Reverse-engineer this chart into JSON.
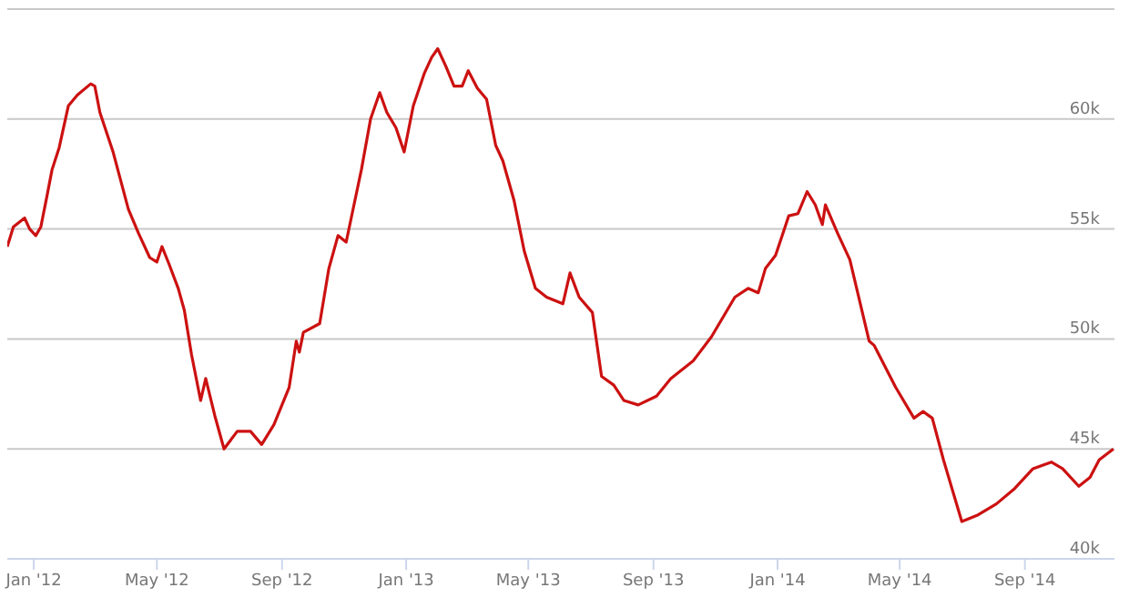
{
  "chart_data": {
    "type": "line",
    "x": [
      "2011-12-06",
      "2011-12-12",
      "2011-12-23",
      "2011-12-28",
      "2012-01-03",
      "2012-01-08",
      "2012-01-14",
      "2012-01-19",
      "2012-01-26",
      "2012-02-04",
      "2012-02-13",
      "2012-02-26",
      "2012-03-01",
      "2012-03-06",
      "2012-03-19",
      "2012-04-03",
      "2012-04-13",
      "2012-04-24",
      "2012-05-01",
      "2012-05-06",
      "2012-05-13",
      "2012-05-22",
      "2012-05-28",
      "2012-06-04",
      "2012-06-13",
      "2012-06-18",
      "2012-06-27",
      "2012-07-06",
      "2012-07-19",
      "2012-08-01",
      "2012-08-12",
      "2012-08-24",
      "2012-09-08",
      "2012-09-15",
      "2012-09-18",
      "2012-09-22",
      "2012-10-08",
      "2012-10-17",
      "2012-10-26",
      "2012-11-03",
      "2012-11-08",
      "2012-11-18",
      "2012-11-27",
      "2012-12-06",
      "2012-12-13",
      "2012-12-22",
      "2012-12-30",
      "2013-01-08",
      "2013-01-19",
      "2013-01-26",
      "2013-02-01",
      "2013-02-09",
      "2013-02-17",
      "2013-02-25",
      "2013-03-03",
      "2013-03-12",
      "2013-03-21",
      "2013-03-30",
      "2013-04-06",
      "2013-04-17",
      "2013-04-27",
      "2013-05-08",
      "2013-05-19",
      "2013-06-04",
      "2013-06-11",
      "2013-06-20",
      "2013-07-03",
      "2013-07-12",
      "2013-07-24",
      "2013-08-03",
      "2013-08-17",
      "2013-09-04",
      "2013-09-18",
      "2013-10-10",
      "2013-10-28",
      "2013-11-20",
      "2013-12-03",
      "2013-12-13",
      "2013-12-20",
      "2013-12-30",
      "2014-01-12",
      "2014-01-21",
      "2014-01-30",
      "2014-02-07",
      "2014-02-14",
      "2014-02-17",
      "2014-03-01",
      "2014-03-13",
      "2014-04-01",
      "2014-04-06",
      "2014-04-27",
      "2014-05-15",
      "2014-05-24",
      "2014-06-02",
      "2014-06-13",
      "2014-07-01",
      "2014-07-17",
      "2014-08-04",
      "2014-08-22",
      "2014-09-09",
      "2014-09-27",
      "2014-10-08",
      "2014-10-24",
      "2014-11-04",
      "2014-11-13",
      "2014-11-27"
    ],
    "series": [
      {
        "color": "#cc1111",
        "values": [
          54200,
          55100,
          55500,
          55000,
          54700,
          55100,
          56500,
          57700,
          58700,
          60600,
          61100,
          61600,
          61500,
          60300,
          58500,
          55900,
          54800,
          53700,
          53500,
          54200,
          53400,
          52300,
          51300,
          49300,
          47200,
          48200,
          46500,
          45000,
          45800,
          45800,
          45200,
          46100,
          47800,
          49900,
          49400,
          50300,
          50700,
          53200,
          54700,
          54400,
          55500,
          57700,
          60000,
          61200,
          60300,
          59600,
          58500,
          60600,
          62100,
          62800,
          63200,
          62400,
          61500,
          61500,
          62200,
          61400,
          60900,
          58800,
          58100,
          56300,
          54000,
          52300,
          51900,
          51600,
          53000,
          51900,
          51200,
          48300,
          47900,
          47200,
          47000,
          47400,
          48200,
          49000,
          50100,
          51900,
          52300,
          52100,
          53200,
          53800,
          55600,
          55700,
          56700,
          56100,
          55200,
          56100,
          54800,
          53600,
          49900,
          49700,
          47800,
          46400,
          46700,
          46400,
          44500,
          41700,
          42000,
          42500,
          43200,
          44100,
          44400,
          44100,
          43300,
          43700,
          44500,
          45000
        ]
      }
    ],
    "xlim": [
      "2011-12-06",
      "2014-11-28"
    ],
    "xticks": [
      {
        "value": "2012-01-01",
        "label": "Jan '12"
      },
      {
        "value": "2012-05-01",
        "label": "May '12"
      },
      {
        "value": "2012-09-01",
        "label": "Sep '12"
      },
      {
        "value": "2013-01-01",
        "label": "Jan '13"
      },
      {
        "value": "2013-05-01",
        "label": "May '13"
      },
      {
        "value": "2013-09-01",
        "label": "Sep '13"
      },
      {
        "value": "2014-01-01",
        "label": "Jan '14"
      },
      {
        "value": "2014-05-01",
        "label": "May '14"
      },
      {
        "value": "2014-09-01",
        "label": "Sep '14"
      }
    ],
    "ylim": [
      40000,
      65000
    ],
    "yticks": [
      {
        "value": 40000,
        "label": "40k"
      },
      {
        "value": 45000,
        "label": "45k"
      },
      {
        "value": 50000,
        "label": "50k"
      },
      {
        "value": 55000,
        "label": "55k"
      },
      {
        "value": 60000,
        "label": "60k"
      },
      {
        "value": 65000,
        "label": null
      }
    ],
    "grid": "y"
  }
}
